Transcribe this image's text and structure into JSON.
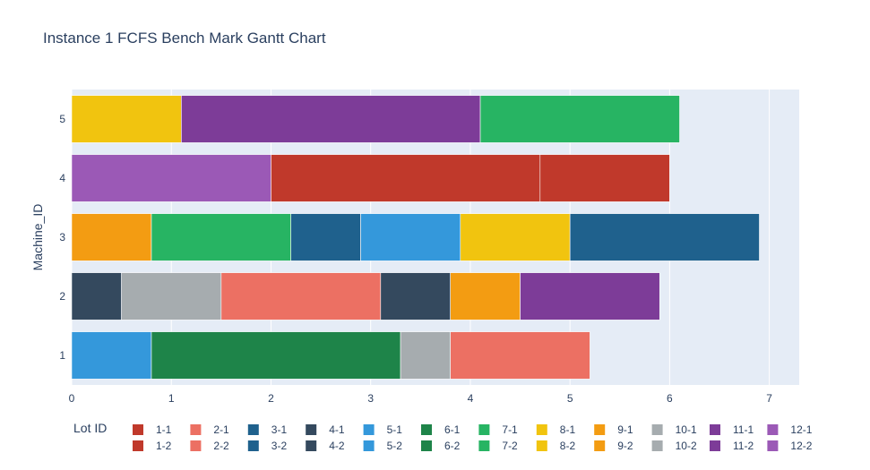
{
  "chart_data": {
    "type": "bar",
    "orientation": "horizontal",
    "title": "Instance 1 FCFS Bench Mark Gantt Chart",
    "xlabel": "",
    "ylabel": "Machine_ID",
    "xlim": [
      0,
      7.3
    ],
    "x_ticks": [
      "0",
      "1",
      "2",
      "3",
      "4",
      "5",
      "6",
      "7"
    ],
    "y_categories": [
      "1",
      "2",
      "3",
      "4",
      "5"
    ],
    "grid": true,
    "plot_background": "#e5ecf6",
    "legend": {
      "title": "Lot ID",
      "position": "bottom",
      "items": [
        {
          "label": "1-1",
          "color": "#c0392b"
        },
        {
          "label": "1-2",
          "color": "#c0392b"
        },
        {
          "label": "2-1",
          "color": "#ec7063"
        },
        {
          "label": "2-2",
          "color": "#ec7063"
        },
        {
          "label": "3-1",
          "color": "#1f618d"
        },
        {
          "label": "3-2",
          "color": "#1f618d"
        },
        {
          "label": "4-1",
          "color": "#34495e"
        },
        {
          "label": "4-2",
          "color": "#34495e"
        },
        {
          "label": "5-1",
          "color": "#3498db"
        },
        {
          "label": "5-2",
          "color": "#3498db"
        },
        {
          "label": "6-1",
          "color": "#1e8449"
        },
        {
          "label": "6-2",
          "color": "#1e8449"
        },
        {
          "label": "7-1",
          "color": "#27b463"
        },
        {
          "label": "7-2",
          "color": "#27b463"
        },
        {
          "label": "8-1",
          "color": "#f1c40f"
        },
        {
          "label": "8-2",
          "color": "#f1c40f"
        },
        {
          "label": "9-1",
          "color": "#f39c12"
        },
        {
          "label": "9-2",
          "color": "#f39c12"
        },
        {
          "label": "10-1",
          "color": "#a6acaf"
        },
        {
          "label": "10-2",
          "color": "#a6acaf"
        },
        {
          "label": "11-1",
          "color": "#7d3c98"
        },
        {
          "label": "11-2",
          "color": "#7d3c98"
        },
        {
          "label": "12-1",
          "color": "#9b59b6"
        },
        {
          "label": "12-2",
          "color": "#9b59b6"
        }
      ]
    },
    "tasks": [
      {
        "machine": "1",
        "start": 0,
        "end": 0.8,
        "color": "#3498db"
      },
      {
        "machine": "1",
        "start": 0.8,
        "end": 3.3,
        "color": "#1e8449"
      },
      {
        "machine": "1",
        "start": 3.3,
        "end": 3.8,
        "color": "#a6acaf"
      },
      {
        "machine": "1",
        "start": 3.8,
        "end": 5.2,
        "color": "#ec7063"
      },
      {
        "machine": "2",
        "start": 0,
        "end": 0.5,
        "color": "#34495e"
      },
      {
        "machine": "2",
        "start": 0.5,
        "end": 1.5,
        "color": "#a6acaf"
      },
      {
        "machine": "2",
        "start": 1.5,
        "end": 3.1,
        "color": "#ec7063"
      },
      {
        "machine": "2",
        "start": 3.1,
        "end": 3.8,
        "color": "#34495e"
      },
      {
        "machine": "2",
        "start": 3.8,
        "end": 4.5,
        "color": "#f39c12"
      },
      {
        "machine": "2",
        "start": 4.5,
        "end": 5.9,
        "color": "#7d3c98"
      },
      {
        "machine": "3",
        "start": 0,
        "end": 0.8,
        "color": "#f39c12"
      },
      {
        "machine": "3",
        "start": 0.8,
        "end": 2.2,
        "color": "#27b463"
      },
      {
        "machine": "3",
        "start": 2.2,
        "end": 2.9,
        "color": "#1f618d"
      },
      {
        "machine": "3",
        "start": 2.9,
        "end": 3.9,
        "color": "#3498db"
      },
      {
        "machine": "3",
        "start": 3.9,
        "end": 5.0,
        "color": "#f1c40f"
      },
      {
        "machine": "3",
        "start": 5.0,
        "end": 6.9,
        "color": "#1f618d"
      },
      {
        "machine": "4",
        "start": 0,
        "end": 2.0,
        "color": "#9b59b6"
      },
      {
        "machine": "4",
        "start": 2.0,
        "end": 4.7,
        "color": "#c0392b"
      },
      {
        "machine": "4",
        "start": 4.7,
        "end": 6.0,
        "color": "#c0392b"
      },
      {
        "machine": "5",
        "start": 0,
        "end": 1.1,
        "color": "#f1c40f"
      },
      {
        "machine": "5",
        "start": 1.1,
        "end": 4.1,
        "color": "#7d3c98"
      },
      {
        "machine": "5",
        "start": 4.1,
        "end": 6.1,
        "color": "#27b463"
      }
    ]
  }
}
